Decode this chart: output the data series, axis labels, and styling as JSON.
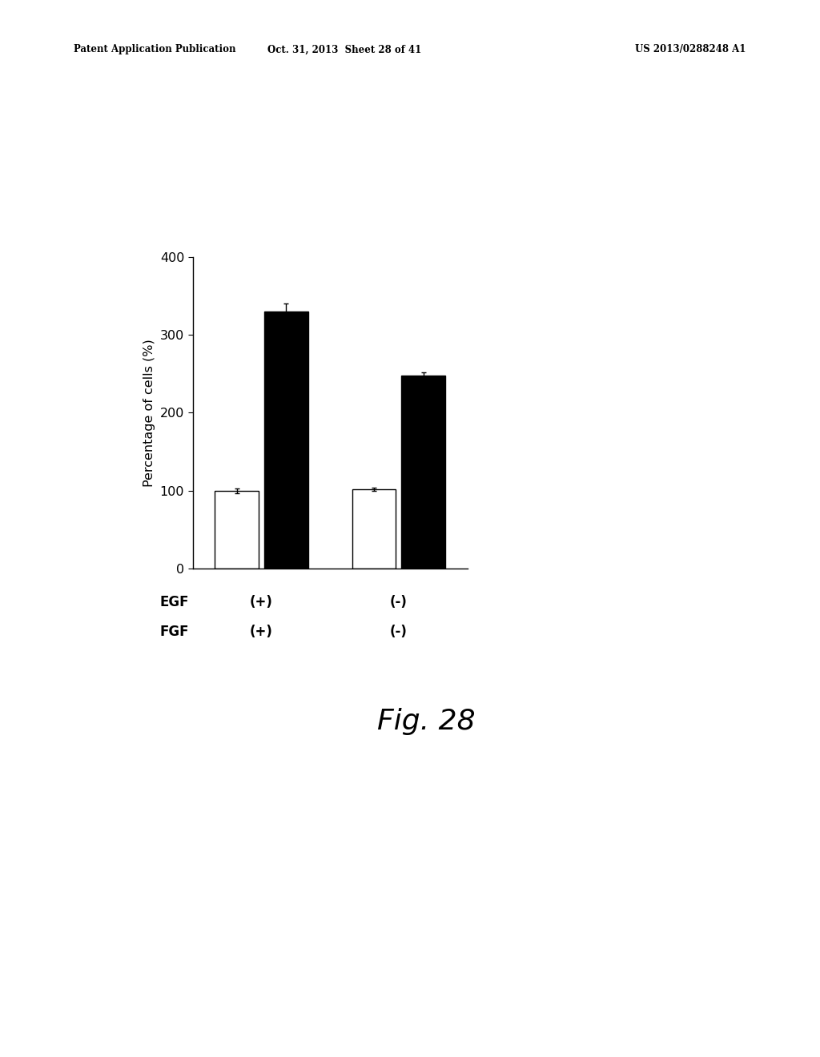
{
  "title_header_left": "Patent Application Publication",
  "title_header_mid": "Oct. 31, 2013  Sheet 28 of 41",
  "title_header_right": "US 2013/0288248 A1",
  "figure_label": "Fig. 28",
  "ylabel": "Percentage of cells (%)",
  "ylim": [
    0,
    400
  ],
  "yticks": [
    0,
    100,
    200,
    300,
    400
  ],
  "groups": [
    {
      "egf": "(+)",
      "fgf": "(+)",
      "white_val": 100,
      "black_val": 330,
      "white_err": 3,
      "black_err": 10
    },
    {
      "egf": "(-)",
      "fgf": "(-)",
      "white_val": 102,
      "black_val": 248,
      "white_err": 2,
      "black_err": 4
    }
  ],
  "bar_width": 0.32,
  "white_color": "#ffffff",
  "black_color": "#000000",
  "edge_color": "#000000",
  "background_color": "#ffffff",
  "header_fontsize": 8.5,
  "ylabel_fontsize": 11.5,
  "tick_fontsize": 11.5,
  "xlabel_fontsize": 12,
  "fig_label_fontsize": 26
}
